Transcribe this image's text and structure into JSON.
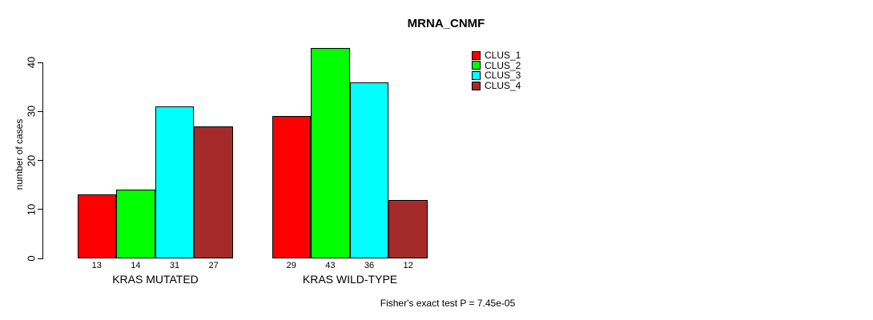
{
  "title": "MRNA_CNMF",
  "footer": "Fisher's exact test P = 7.45e-05",
  "colors": {
    "clus_1": "#ff0000",
    "clus_2": "#00ff00",
    "clus_3": "#00ffff",
    "clus_4": "#a52a2a",
    "axis": "#000000",
    "background": "#ffffff"
  },
  "chart_data": {
    "type": "bar",
    "title": "MRNA_CNMF",
    "xlabel": "",
    "ylabel": "number of cases",
    "categories": [
      "KRAS MUTATED",
      "KRAS WILD-TYPE"
    ],
    "series": [
      {
        "name": "CLUS_1",
        "color": "#ff0000",
        "values": [
          13,
          29
        ]
      },
      {
        "name": "CLUS_2",
        "color": "#00ff00",
        "values": [
          14,
          43
        ]
      },
      {
        "name": "CLUS_3",
        "color": "#00ffff",
        "values": [
          31,
          36
        ]
      },
      {
        "name": "CLUS_4",
        "color": "#a52a2a",
        "values": [
          27,
          12
        ]
      }
    ],
    "bar_value_labels": [
      [
        13,
        14,
        31,
        27
      ],
      [
        29,
        43,
        36,
        12
      ]
    ],
    "yticks": [
      0,
      10,
      20,
      30,
      40
    ],
    "ylim": [
      0,
      43
    ],
    "grid": false,
    "legend_position": "top-right",
    "annotation": "Fisher's exact test P = 7.45e-05"
  }
}
